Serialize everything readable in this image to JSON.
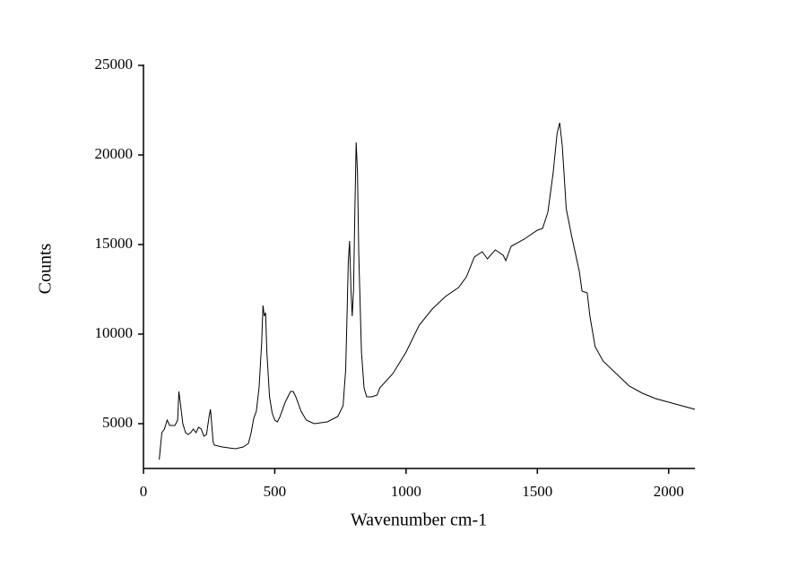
{
  "chart_data": {
    "type": "line",
    "xlabel": "Wavenumber cm-1",
    "ylabel": "Counts",
    "xlim": [
      0,
      2100
    ],
    "ylim": [
      2500,
      25000
    ],
    "xticks": [
      0,
      500,
      1000,
      1500,
      2000
    ],
    "yticks": [
      5000,
      10000,
      15000,
      20000,
      25000
    ],
    "series": [
      {
        "color": "#000000",
        "x": [
          60,
          70,
          80,
          90,
          100,
          120,
          130,
          135,
          140,
          150,
          160,
          170,
          180,
          190,
          200,
          210,
          220,
          230,
          240,
          250,
          255,
          260,
          265,
          270,
          300,
          350,
          380,
          400,
          410,
          420,
          430,
          440,
          450,
          455,
          460,
          465,
          470,
          480,
          490,
          500,
          510,
          520,
          540,
          560,
          570,
          580,
          600,
          620,
          650,
          700,
          740,
          760,
          770,
          775,
          780,
          785,
          790,
          795,
          800,
          805,
          810,
          815,
          820,
          830,
          840,
          850,
          870,
          890,
          900,
          950,
          1000,
          1050,
          1100,
          1150,
          1200,
          1230,
          1260,
          1290,
          1310,
          1340,
          1370,
          1380,
          1400,
          1450,
          1500,
          1520,
          1540,
          1560,
          1575,
          1585,
          1595,
          1610,
          1630,
          1660,
          1670,
          1690,
          1700,
          1720,
          1750,
          1800,
          1850,
          1900,
          1950,
          2000,
          2050,
          2100
        ],
        "values": [
          3000,
          4500,
          4700,
          5200,
          4900,
          4900,
          5200,
          6800,
          6200,
          5000,
          4500,
          4400,
          4500,
          4700,
          4500,
          4800,
          4700,
          4300,
          4400,
          5400,
          5800,
          5000,
          4000,
          3800,
          3700,
          3600,
          3700,
          3900,
          4500,
          5300,
          5700,
          7000,
          9500,
          11600,
          11000,
          11200,
          9000,
          6500,
          5600,
          5200,
          5100,
          5400,
          6200,
          6800,
          6800,
          6500,
          5700,
          5200,
          5000,
          5100,
          5400,
          6000,
          8000,
          11000,
          14000,
          15200,
          12500,
          11000,
          12500,
          17000,
          20700,
          19000,
          14500,
          9000,
          7000,
          6500,
          6500,
          6600,
          7000,
          7800,
          9000,
          10500,
          11400,
          12100,
          12600,
          13200,
          14300,
          14600,
          14200,
          14700,
          14400,
          14100,
          14900,
          15300,
          15800,
          15900,
          16800,
          19000,
          21200,
          21800,
          20500,
          17000,
          15500,
          13500,
          12400,
          12300,
          11000,
          9300,
          8500,
          7800,
          7100,
          6700,
          6400,
          6200,
          6000,
          5800
        ]
      }
    ]
  }
}
